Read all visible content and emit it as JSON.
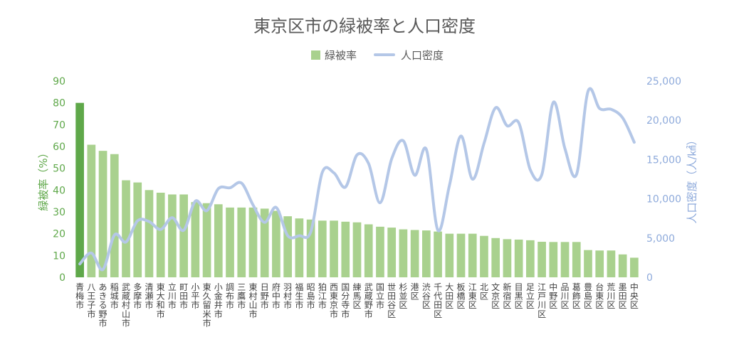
{
  "chart_data": {
    "type": "bar",
    "title": "東京区市の緑被率と人口密度",
    "legend": {
      "position": "top",
      "entries": [
        "緑被率",
        "人口密度"
      ]
    },
    "categories": [
      "青梅市",
      "八王子市",
      "あきる野市",
      "稲城市",
      "武蔵村山市",
      "多摩市",
      "清瀬市",
      "東大和市",
      "立川市",
      "町田市",
      "小平市",
      "東久留米市",
      "小金井市",
      "調布市",
      "三鷹市",
      "東村山市",
      "日野市",
      "府中市",
      "羽村市",
      "福生市",
      "昭島市",
      "狛江市",
      "西東京市",
      "国分寺市",
      "練馬区",
      "武蔵野市",
      "国立市",
      "世田谷区",
      "杉並区",
      "港区",
      "渋谷区",
      "千代田区",
      "大田区",
      "板橋区",
      "江東区",
      "北区",
      "文京区",
      "新宿区",
      "目黒区",
      "足立区",
      "江戸川区",
      "中野区",
      "品川区",
      "葛飾区",
      "豊島区",
      "台東区",
      "荒川区",
      "墨田区",
      "中央区"
    ],
    "series": [
      {
        "name": "緑被率",
        "type": "bar",
        "axis": "left",
        "color": "#a9d18e",
        "highlight_color": "#5fa84a",
        "highlight_index": 0,
        "values": [
          80,
          60.8,
          58,
          56.5,
          44.5,
          43.5,
          40,
          38.8,
          38,
          38,
          34.5,
          34,
          33.5,
          32,
          32,
          32,
          31.5,
          30.5,
          28,
          27,
          26.5,
          26,
          26,
          25.5,
          25.2,
          24.3,
          23.2,
          22.8,
          22,
          21.7,
          21.5,
          21,
          20,
          20,
          20,
          19,
          18,
          17.5,
          17.3,
          17,
          16.3,
          16.2,
          16.2,
          16.2,
          12.5,
          12.3,
          12.3,
          10.5,
          9
        ]
      },
      {
        "name": "人口密度",
        "type": "line",
        "axis": "right",
        "color": "#b4c7e7",
        "values": [
          1700,
          3100,
          1000,
          5400,
          4500,
          7200,
          7100,
          6100,
          7600,
          6000,
          9700,
          8500,
          11300,
          11400,
          12000,
          9200,
          7000,
          8900,
          5300,
          5300,
          5800,
          13400,
          13300,
          11500,
          15600,
          14500,
          9500,
          15100,
          17400,
          13000,
          16300,
          6000,
          11700,
          18000,
          12500,
          17100,
          21600,
          19300,
          19700,
          13700,
          13100,
          22300,
          16400,
          13100,
          23700,
          21500,
          21400,
          20300,
          17200
        ]
      }
    ],
    "y_left": {
      "label": "緑被率（%）",
      "min": 0,
      "max": 90,
      "ticks": [
        "0",
        "10",
        "20",
        "30",
        "40",
        "50",
        "60",
        "70",
        "80",
        "90"
      ]
    },
    "y_right": {
      "label": "人口密度（人/㎢）",
      "min": 0,
      "max": 25000,
      "ticks": [
        "0",
        "5,000",
        "10,000",
        "15,000",
        "20,000",
        "25,000"
      ]
    }
  }
}
